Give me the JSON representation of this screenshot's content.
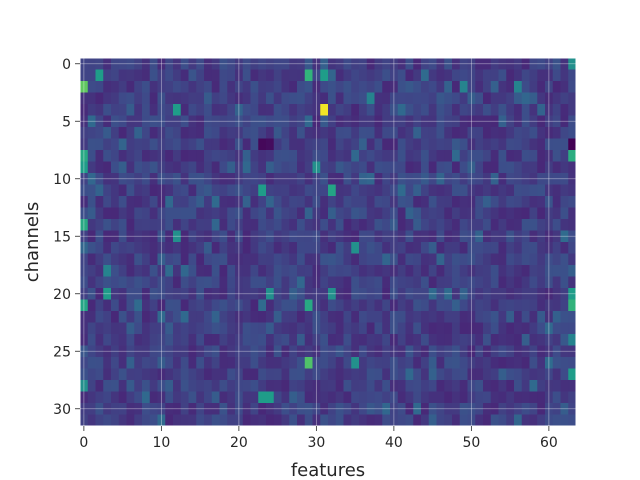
{
  "chart_data": {
    "type": "heatmap",
    "title": "",
    "xlabel": "features",
    "ylabel": "channels",
    "n_rows": 32,
    "n_cols": 64,
    "xlim": [
      -0.5,
      63.5
    ],
    "ylim": [
      31.5,
      -0.5
    ],
    "x_ticks": [
      0,
      10,
      20,
      30,
      40,
      50,
      60
    ],
    "x_tick_labels": [
      "0",
      "10",
      "20",
      "30",
      "40",
      "50",
      "60"
    ],
    "y_ticks": [
      0,
      5,
      10,
      15,
      20,
      25,
      30
    ],
    "y_tick_labels": [
      "0",
      "5",
      "10",
      "15",
      "20",
      "25",
      "30"
    ],
    "grid": true,
    "colormap": "viridis",
    "value_range": [
      0,
      1
    ],
    "baseline_value": 0.18,
    "notable_cells": [
      {
        "row": 4,
        "col": 31,
        "value": 0.98
      },
      {
        "row": 2,
        "col": 0,
        "value": 0.75
      },
      {
        "row": 1,
        "col": 2,
        "value": 0.55
      },
      {
        "row": 1,
        "col": 29,
        "value": 0.65
      },
      {
        "row": 1,
        "col": 31,
        "value": 0.55
      },
      {
        "row": 4,
        "col": 12,
        "value": 0.55
      },
      {
        "row": 0,
        "col": 63,
        "value": 0.5
      },
      {
        "row": 7,
        "col": 63,
        "value": 0.0
      },
      {
        "row": 7,
        "col": 23,
        "value": 0.02
      },
      {
        "row": 7,
        "col": 24,
        "value": 0.03
      },
      {
        "row": 8,
        "col": 63,
        "value": 0.62
      },
      {
        "row": 8,
        "col": 0,
        "value": 0.6
      },
      {
        "row": 9,
        "col": 0,
        "value": 0.55
      },
      {
        "row": 9,
        "col": 30,
        "value": 0.5
      },
      {
        "row": 11,
        "col": 32,
        "value": 0.58
      },
      {
        "row": 11,
        "col": 23,
        "value": 0.55
      },
      {
        "row": 14,
        "col": 0,
        "value": 0.6
      },
      {
        "row": 15,
        "col": 12,
        "value": 0.5
      },
      {
        "row": 16,
        "col": 35,
        "value": 0.5
      },
      {
        "row": 20,
        "col": 3,
        "value": 0.55
      },
      {
        "row": 21,
        "col": 0,
        "value": 0.58
      },
      {
        "row": 21,
        "col": 29,
        "value": 0.6
      },
      {
        "row": 21,
        "col": 63,
        "value": 0.65
      },
      {
        "row": 20,
        "col": 63,
        "value": 0.55
      },
      {
        "row": 20,
        "col": 24,
        "value": 0.5
      },
      {
        "row": 20,
        "col": 32,
        "value": 0.5
      },
      {
        "row": 26,
        "col": 29,
        "value": 0.72
      },
      {
        "row": 26,
        "col": 35,
        "value": 0.5
      },
      {
        "row": 29,
        "col": 23,
        "value": 0.55
      },
      {
        "row": 29,
        "col": 24,
        "value": 0.55
      },
      {
        "row": 28,
        "col": 0,
        "value": 0.5
      },
      {
        "row": 27,
        "col": 63,
        "value": 0.55
      },
      {
        "row": 24,
        "col": 63,
        "value": 0.45
      },
      {
        "row": 2,
        "col": 49,
        "value": 0.45
      },
      {
        "row": 2,
        "col": 56,
        "value": 0.45
      },
      {
        "row": 18,
        "col": 3,
        "value": 0.45
      },
      {
        "row": 3,
        "col": 37,
        "value": 0.45
      }
    ]
  }
}
